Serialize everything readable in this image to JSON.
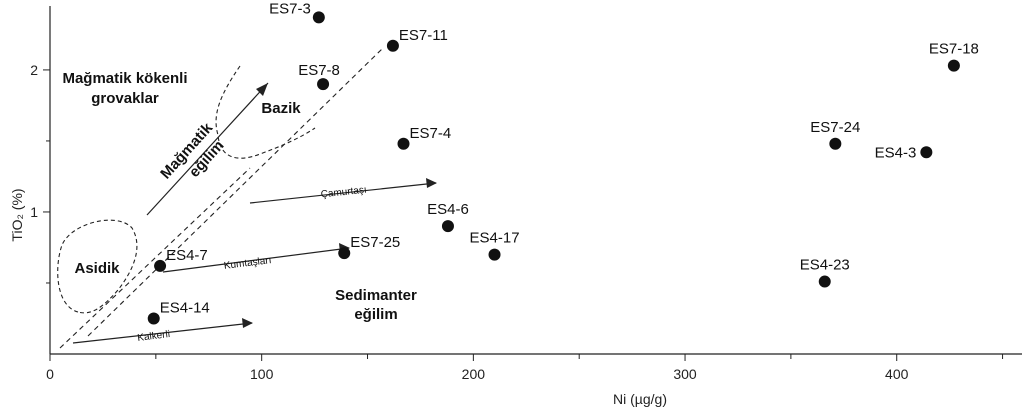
{
  "chart_data": {
    "type": "scatter",
    "title": "",
    "xlabel": "Ni (µg/g)",
    "ylabel": "TiO₂ (%)",
    "xlim": [
      0,
      450
    ],
    "ylim": [
      0,
      2.45
    ],
    "xticks": [
      0,
      100,
      200,
      300,
      400
    ],
    "yticks": [
      1,
      2
    ],
    "grid": false,
    "legend": "none",
    "point_color": "#111111",
    "points": [
      {
        "label": "ES7-3",
        "x": 127,
        "y": 2.37
      },
      {
        "label": "ES7-11",
        "x": 162,
        "y": 2.17
      },
      {
        "label": "ES7-8",
        "x": 129,
        "y": 1.9
      },
      {
        "label": "ES7-18",
        "x": 427,
        "y": 2.03
      },
      {
        "label": "ES7-4",
        "x": 167,
        "y": 1.48
      },
      {
        "label": "ES7-24",
        "x": 371,
        "y": 1.48
      },
      {
        "label": "ES4-3",
        "x": 414,
        "y": 1.42
      },
      {
        "label": "ES4-6",
        "x": 188,
        "y": 0.9
      },
      {
        "label": "ES4-7",
        "x": 52,
        "y": 0.62
      },
      {
        "label": "ES7-25",
        "x": 139,
        "y": 0.71
      },
      {
        "label": "ES4-17",
        "x": 210,
        "y": 0.7
      },
      {
        "label": "ES4-23",
        "x": 366,
        "y": 0.51
      },
      {
        "label": "ES4-14",
        "x": 49,
        "y": 0.25
      }
    ],
    "annotations": {
      "magmatic_title_1": "Mağmatik kökenli",
      "magmatic_title_2": "grovaklar",
      "bazik": "Bazik",
      "asidik": "Asidik",
      "magmatic_trend_1": "Mağmatik",
      "magmatic_trend_2": "eğilim",
      "sediment_trend_1": "Sedimanter",
      "sediment_trend_2": "eğilim",
      "camurtasi": "Çamurtaşı",
      "kumtaslari": "Kumtaşları",
      "kalkerli": "Kalkerli"
    }
  }
}
